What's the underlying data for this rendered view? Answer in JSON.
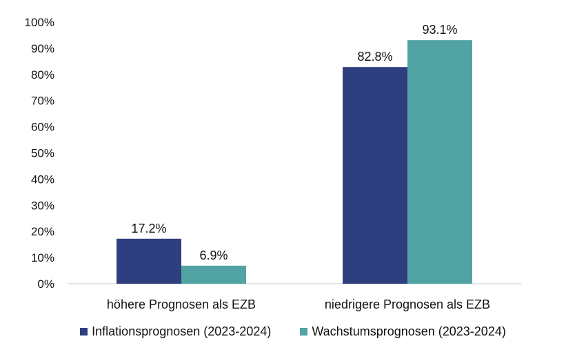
{
  "chart_data": {
    "type": "bar",
    "categories": [
      "höhere Prognosen als  EZB",
      "niedrigere Prognosen als  EZB"
    ],
    "series": [
      {
        "name": "Inflationsprognosen (2023-2024)",
        "values": [
          17.2,
          82.8
        ],
        "color": "#2f3e7e"
      },
      {
        "name": "Wachstumsprognosen (2023-2024)",
        "values": [
          6.9,
          93.1
        ],
        "color": "#52a3a4"
      }
    ],
    "data_labels": [
      [
        "17.2%",
        "82.8%"
      ],
      [
        "6.9%",
        "93.1%"
      ]
    ],
    "y_ticks": [
      "0%",
      "10%",
      "20%",
      "30%",
      "40%",
      "50%",
      "60%",
      "70%",
      "80%",
      "90%",
      "100%"
    ],
    "ylim": [
      0,
      100
    ],
    "grid": false,
    "legend_position": "bottom"
  }
}
